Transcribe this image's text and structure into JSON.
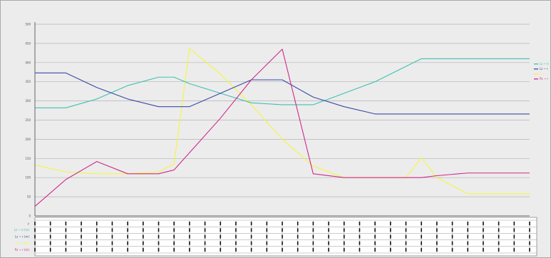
{
  "chart_data": {
    "type": "line",
    "ylim": [
      0,
      500
    ],
    "yticks": [
      0,
      50,
      100,
      150,
      200,
      250,
      300,
      350,
      400,
      450,
      500
    ],
    "grid": true,
    "legend_position": "right",
    "x_count": 33,
    "x": [
      0,
      2,
      4,
      6,
      8,
      9,
      10,
      12,
      14,
      16,
      18,
      20,
      22,
      24,
      25,
      26,
      28,
      30,
      32
    ],
    "series": [
      {
        "key": "yellow",
        "color": "#f5f542",
        "values": [
          133,
          115,
          110,
          110,
          115,
          135,
          437,
          370,
          290,
          200,
          130,
          100,
          100,
          100,
          152,
          100,
          58,
          58,
          58
        ]
      },
      {
        "key": "teal",
        "color": "#3fc1b0",
        "values": [
          282,
          282,
          305,
          340,
          362,
          362,
          345,
          320,
          295,
          290,
          290,
          320,
          350,
          390,
          410,
          410,
          410,
          410,
          410
        ]
      },
      {
        "key": "navy",
        "color": "#3a4aa8",
        "values": [
          373,
          373,
          335,
          305,
          285,
          285,
          285,
          320,
          355,
          355,
          310,
          285,
          266,
          266,
          266,
          266,
          266,
          266,
          266
        ]
      },
      {
        "key": "magenta",
        "color": "#cc2a88",
        "values": [
          25,
          95,
          142,
          110,
          110,
          120,
          165,
          255,
          355,
          435,
          110,
          100,
          100,
          100,
          100,
          105,
          112,
          112,
          112
        ]
      }
    ],
    "legend": [
      {
        "color": "#3fc1b0",
        "label": "Lz ~ h"
      },
      {
        "color": "#3a4aa8",
        "label": "Lz ~ r"
      },
      {
        "color": "#f5f542",
        "label": "n ~ r"
      },
      {
        "color": "#cc2a88",
        "label": "Pz ~ r"
      }
    ],
    "table_row_labels": [
      {
        "color": "#cc2a88",
        "label": "y"
      },
      {
        "color": "#3fc1b0",
        "label": "Lz ~ h (m)"
      },
      {
        "color": "#3a4aa8",
        "label": "Lz ~ r (m)"
      },
      {
        "color": "#f5f542",
        "label": "n ~ r (m)"
      },
      {
        "color": "#cc2a88",
        "label": "Pz ~ r (m)"
      }
    ]
  }
}
